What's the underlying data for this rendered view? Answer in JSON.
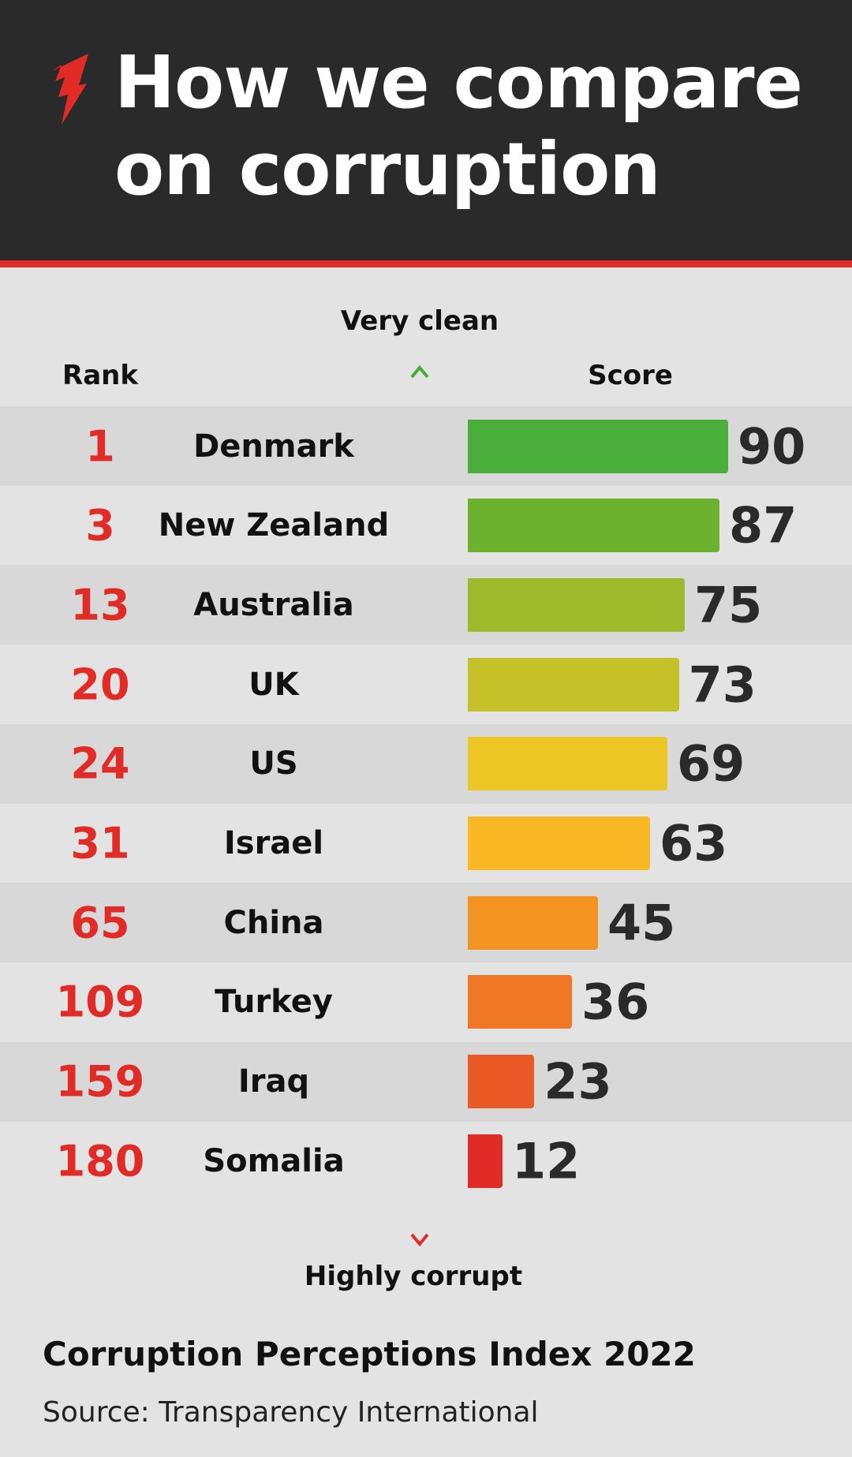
{
  "header": {
    "title_line1": "How we compare",
    "title_line2": "on corruption",
    "logo": "sbs-logo",
    "accent": "#e02b27"
  },
  "labels": {
    "top": "Very clean",
    "bottom": "Highly corrupt",
    "rank_header": "Rank",
    "score_header": "Score"
  },
  "chart_data": {
    "type": "bar",
    "orientation": "horizontal",
    "categories": [
      "Denmark",
      "New Zealand",
      "Australia",
      "UK",
      "US",
      "Israel",
      "China",
      "Turkey",
      "Iraq",
      "Somalia"
    ],
    "ranks": [
      "1",
      "3",
      "13",
      "20",
      "24",
      "31",
      "65",
      "109",
      "159",
      "180"
    ],
    "values": [
      90,
      87,
      75,
      73,
      69,
      63,
      45,
      36,
      23,
      12
    ],
    "colors": [
      "#4aae3a",
      "#6db22f",
      "#9fba2a",
      "#c5c128",
      "#ecc624",
      "#fbb825",
      "#f39322",
      "#ef7726",
      "#e95a27",
      "#e02b27"
    ],
    "xlim": [
      0,
      100
    ]
  },
  "footer": {
    "title": "Corruption Perceptions Index 2022",
    "source": "Source: Transparency International"
  }
}
